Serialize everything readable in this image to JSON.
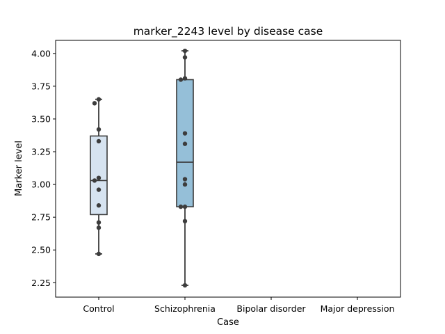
{
  "chart_data": {
    "type": "box",
    "title": "marker_2243 level by disease case",
    "xlabel": "Case",
    "ylabel": "Marker level",
    "categories": [
      "Control",
      "Schizophrenia",
      "Bipolar disorder",
      "Major depression"
    ],
    "ylim": [
      2.14,
      4.1
    ],
    "yticks": [
      2.25,
      2.5,
      2.75,
      3.0,
      3.25,
      3.5,
      3.75,
      4.0
    ],
    "ytick_labels": [
      "2.25",
      "2.50",
      "2.75",
      "3.00",
      "3.25",
      "3.50",
      "3.75",
      "4.00"
    ],
    "grid": false,
    "boxes": [
      {
        "category": "Control",
        "whisker_low": 2.47,
        "q1": 2.77,
        "median": 3.03,
        "q3": 3.37,
        "whisker_high": 3.65,
        "color": "#d6e3f0"
      },
      {
        "category": "Schizophrenia",
        "whisker_low": 2.23,
        "q1": 2.83,
        "median": 3.17,
        "q3": 3.8,
        "whisker_high": 4.02,
        "color": "#95bfd8"
      }
    ],
    "points": [
      {
        "category": "Control",
        "values": [
          3.65,
          3.62,
          3.42,
          3.33,
          3.05,
          3.03,
          2.96,
          2.84,
          2.71,
          2.67,
          2.47
        ]
      },
      {
        "category": "Schizophrenia",
        "values": [
          4.02,
          3.97,
          3.81,
          3.8,
          3.39,
          3.31,
          3.04,
          3.0,
          2.83,
          2.83,
          2.72,
          2.23
        ]
      }
    ]
  }
}
